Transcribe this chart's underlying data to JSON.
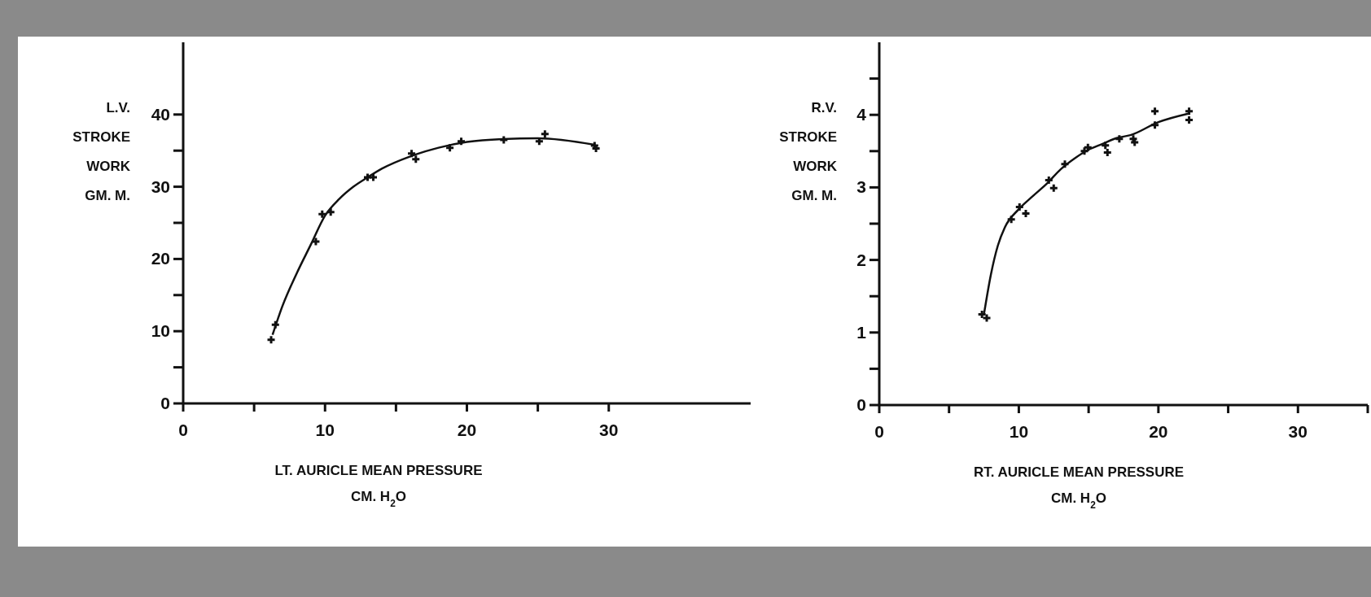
{
  "chart_data": [
    {
      "type": "scatter",
      "ylabel": "L.V.\nSTROKE\nWORK\nGM. M.",
      "xlabel": "LT. AURICLE MEAN PRESSURE\nCM. H$_{2}$O",
      "xlim": [
        0,
        40
      ],
      "ylim": [
        0,
        50
      ],
      "xticks": [
        0,
        {
          "value": 5,
          "label": null
        },
        10,
        {
          "value": 15,
          "label": null
        },
        20,
        {
          "value": 25,
          "label": null
        },
        30
      ],
      "yticks": [
        0,
        {
          "value": 5,
          "label": null
        },
        10,
        {
          "value": 15,
          "label": null
        },
        20,
        {
          "value": 25,
          "label": null
        },
        30,
        {
          "value": 35,
          "label": null
        },
        40
      ],
      "series": [
        {
          "marker": "cross",
          "color": "#111111",
          "x": [
            6.2,
            6.5,
            9.35,
            9.8,
            10.4,
            13.0,
            13.4,
            16.1,
            16.4,
            18.8,
            19.6,
            22.6,
            25.1,
            25.5,
            29.0,
            29.1
          ],
          "values": [
            8.8,
            10.9,
            22.4,
            26.2,
            26.5,
            31.3,
            31.3,
            34.6,
            33.8,
            35.4,
            36.3,
            36.5,
            36.3,
            37.3,
            35.7,
            35.3
          ]
        },
        {
          "type": "line",
          "marker": "none",
          "color": "#111111",
          "x": [
            6.3,
            7,
            8,
            9,
            10,
            11,
            12,
            13,
            14,
            16,
            18,
            20,
            22.5,
            25,
            29
          ],
          "values": [
            9.5,
            13.5,
            18,
            22,
            26,
            28.3,
            30,
            31.3,
            32.5,
            34.2,
            35.4,
            36.2,
            36.6,
            36.7,
            35.8
          ]
        }
      ]
    },
    {
      "type": "scatter",
      "ylabel": "R.V.\nSTROKE\nWORK\nGM. M.",
      "xlabel": "RT. AURICLE MEAN PRESSURE\nCM. H$_{2}$O",
      "xlim": [
        0,
        35
      ],
      "ylim": [
        0,
        5
      ],
      "xticks": [
        0,
        {
          "value": 5,
          "label": null
        },
        10,
        {
          "value": 15,
          "label": null
        },
        20,
        {
          "value": 25,
          "label": null
        },
        30,
        {
          "value": 35,
          "label": null
        }
      ],
      "yticks": [
        0,
        {
          "value": 0.5,
          "label": null
        },
        1,
        {
          "value": 1.5,
          "label": null
        },
        2,
        {
          "value": 2.5,
          "label": null
        },
        3,
        {
          "value": 3.5,
          "label": null
        },
        4,
        {
          "value": 4.5,
          "label": null
        }
      ],
      "series": [
        {
          "marker": "cross",
          "color": "#111111",
          "x": [
            7.36,
            7.7,
            9.46,
            10.05,
            10.5,
            12.15,
            12.5,
            13.3,
            14.7,
            14.95,
            16.2,
            16.35,
            17.2,
            18.2,
            18.3,
            19.75,
            19.75,
            22.2,
            22.2
          ],
          "values": [
            1.25,
            1.2,
            2.56,
            2.73,
            2.64,
            3.1,
            2.99,
            3.32,
            3.5,
            3.55,
            3.58,
            3.48,
            3.67,
            3.67,
            3.62,
            4.05,
            3.86,
            4.05,
            3.93
          ]
        },
        {
          "type": "line",
          "marker": "none",
          "color": "#111111",
          "x": [
            7.5,
            8,
            8.5,
            9,
            10,
            11,
            12,
            13,
            14,
            15,
            16,
            17,
            18,
            20,
            22.2
          ],
          "values": [
            1.25,
            1.8,
            2.2,
            2.45,
            2.7,
            2.88,
            3.05,
            3.25,
            3.4,
            3.52,
            3.6,
            3.68,
            3.72,
            3.9,
            4.02
          ]
        }
      ]
    }
  ]
}
